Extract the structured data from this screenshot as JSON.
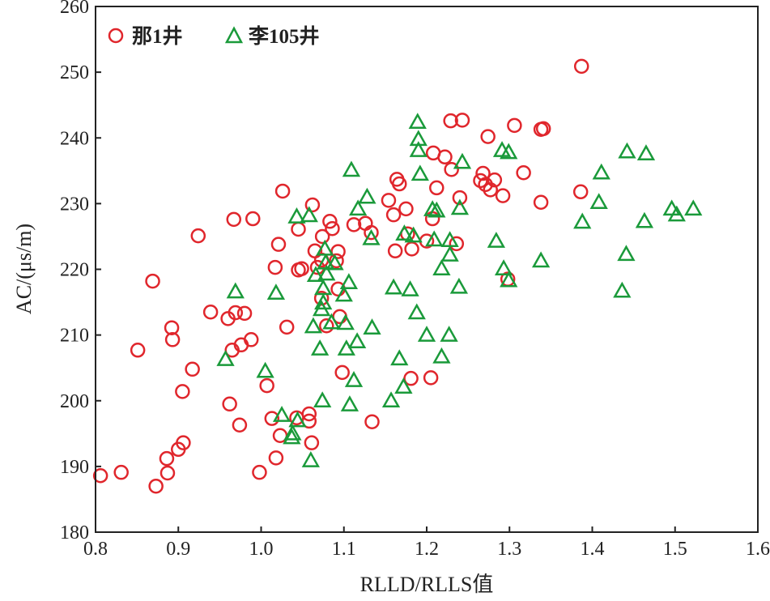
{
  "chart_data": {
    "type": "scatter",
    "title": "",
    "xlabel": "RLLD/RLLS值",
    "ylabel": "AC/(μs/m)",
    "xlim": [
      0.8,
      1.6
    ],
    "ylim": [
      180,
      260
    ],
    "xticks": [
      "0.8",
      "0.9",
      "1.0",
      "1.1",
      "1.2",
      "1.3",
      "1.4",
      "1.5",
      "1.6"
    ],
    "yticks": [
      "180",
      "190",
      "200",
      "210",
      "220",
      "230",
      "240",
      "250",
      "260"
    ],
    "grid": false,
    "legend_position": "top-left",
    "series": [
      {
        "name": "那1井",
        "marker": "circle",
        "color": "#e0262c",
        "points": [
          [
            0.806,
            188.6
          ],
          [
            0.831,
            189.1
          ],
          [
            0.851,
            207.7
          ],
          [
            0.869,
            218.2
          ],
          [
            0.873,
            187.0
          ],
          [
            0.886,
            191.2
          ],
          [
            0.887,
            189.0
          ],
          [
            0.892,
            211.1
          ],
          [
            0.893,
            209.3
          ],
          [
            0.9,
            192.6
          ],
          [
            0.906,
            193.6
          ],
          [
            0.905,
            201.4
          ],
          [
            0.917,
            204.8
          ],
          [
            0.924,
            225.1
          ],
          [
            0.939,
            213.5
          ],
          [
            0.96,
            212.5
          ],
          [
            0.962,
            199.5
          ],
          [
            0.967,
            227.6
          ],
          [
            0.965,
            207.7
          ],
          [
            0.969,
            213.4
          ],
          [
            0.974,
            196.3
          ],
          [
            0.976,
            208.5
          ],
          [
            0.98,
            213.3
          ],
          [
            0.988,
            209.3
          ],
          [
            0.99,
            227.7
          ],
          [
            0.998,
            189.1
          ],
          [
            1.007,
            202.3
          ],
          [
            1.013,
            197.3
          ],
          [
            1.018,
            191.3
          ],
          [
            1.021,
            223.8
          ],
          [
            1.017,
            220.3
          ],
          [
            1.023,
            194.7
          ],
          [
            1.026,
            231.9
          ],
          [
            1.031,
            211.2
          ],
          [
            1.043,
            197.4
          ],
          [
            1.045,
            226.1
          ],
          [
            1.045,
            219.9
          ],
          [
            1.049,
            220.1
          ],
          [
            1.058,
            196.9
          ],
          [
            1.058,
            198.0
          ],
          [
            1.061,
            193.6
          ],
          [
            1.062,
            229.8
          ],
          [
            1.065,
            222.8
          ],
          [
            1.068,
            220.3
          ],
          [
            1.073,
            215.6
          ],
          [
            1.073,
            221.4
          ],
          [
            1.074,
            225.0
          ],
          [
            1.079,
            211.4
          ],
          [
            1.083,
            227.3
          ],
          [
            1.086,
            226.2
          ],
          [
            1.091,
            221.3
          ],
          [
            1.093,
            222.7
          ],
          [
            1.093,
            217.0
          ],
          [
            1.095,
            212.8
          ],
          [
            1.098,
            204.3
          ],
          [
            1.112,
            226.8
          ],
          [
            1.126,
            227.0
          ],
          [
            1.133,
            225.6
          ],
          [
            1.134,
            196.8
          ],
          [
            1.154,
            230.5
          ],
          [
            1.16,
            228.3
          ],
          [
            1.162,
            222.8
          ],
          [
            1.164,
            233.7
          ],
          [
            1.167,
            233.0
          ],
          [
            1.175,
            229.2
          ],
          [
            1.177,
            225.4
          ],
          [
            1.181,
            203.4
          ],
          [
            1.182,
            223.1
          ],
          [
            1.2,
            224.3
          ],
          [
            1.205,
            203.5
          ],
          [
            1.207,
            227.7
          ],
          [
            1.208,
            237.7
          ],
          [
            1.212,
            232.4
          ],
          [
            1.222,
            237.1
          ],
          [
            1.229,
            242.6
          ],
          [
            1.23,
            235.2
          ],
          [
            1.236,
            223.9
          ],
          [
            1.24,
            230.9
          ],
          [
            1.243,
            242.7
          ],
          [
            1.265,
            233.5
          ],
          [
            1.268,
            234.6
          ],
          [
            1.271,
            232.9
          ],
          [
            1.274,
            240.2
          ],
          [
            1.277,
            232.1
          ],
          [
            1.282,
            233.6
          ],
          [
            1.292,
            231.2
          ],
          [
            1.298,
            218.5
          ],
          [
            1.306,
            241.9
          ],
          [
            1.317,
            234.7
          ],
          [
            1.338,
            241.3
          ],
          [
            1.338,
            230.2
          ],
          [
            1.341,
            241.4
          ],
          [
            1.386,
            231.8
          ],
          [
            1.387,
            250.9
          ]
        ]
      },
      {
        "name": "李105井",
        "marker": "triangle",
        "color": "#1a9a3a",
        "points": [
          [
            0.957,
            206.3
          ],
          [
            0.969,
            216.6
          ],
          [
            1.005,
            204.5
          ],
          [
            1.018,
            216.4
          ],
          [
            1.025,
            197.8
          ],
          [
            1.037,
            194.4
          ],
          [
            1.038,
            195.0
          ],
          [
            1.044,
            197.0
          ],
          [
            1.043,
            228.0
          ],
          [
            1.058,
            228.2
          ],
          [
            1.06,
            190.9
          ],
          [
            1.063,
            211.3
          ],
          [
            1.066,
            219.1
          ],
          [
            1.071,
            207.9
          ],
          [
            1.073,
            213.9
          ],
          [
            1.074,
            200.0
          ],
          [
            1.075,
            214.9
          ],
          [
            1.075,
            217.1
          ],
          [
            1.077,
            223.1
          ],
          [
            1.078,
            221.0
          ],
          [
            1.079,
            219.3
          ],
          [
            1.085,
            211.9
          ],
          [
            1.089,
            220.9
          ],
          [
            1.1,
            216.1
          ],
          [
            1.102,
            211.8
          ],
          [
            1.103,
            207.9
          ],
          [
            1.106,
            218.0
          ],
          [
            1.107,
            199.4
          ],
          [
            1.109,
            235.1
          ],
          [
            1.112,
            203.1
          ],
          [
            1.116,
            209.0
          ],
          [
            1.117,
            229.2
          ],
          [
            1.128,
            231.0
          ],
          [
            1.133,
            224.7
          ],
          [
            1.134,
            211.1
          ],
          [
            1.157,
            200.0
          ],
          [
            1.16,
            217.2
          ],
          [
            1.167,
            206.4
          ],
          [
            1.172,
            202.1
          ],
          [
            1.173,
            225.4
          ],
          [
            1.18,
            216.9
          ],
          [
            1.184,
            225.1
          ],
          [
            1.188,
            213.4
          ],
          [
            1.189,
            242.4
          ],
          [
            1.19,
            239.8
          ],
          [
            1.19,
            238.1
          ],
          [
            1.192,
            234.5
          ],
          [
            1.2,
            210.0
          ],
          [
            1.207,
            229.1
          ],
          [
            1.209,
            224.5
          ],
          [
            1.212,
            228.9
          ],
          [
            1.218,
            220.1
          ],
          [
            1.218,
            206.7
          ],
          [
            1.227,
            210.0
          ],
          [
            1.228,
            224.4
          ],
          [
            1.228,
            222.2
          ],
          [
            1.239,
            217.3
          ],
          [
            1.24,
            229.3
          ],
          [
            1.243,
            236.3
          ],
          [
            1.284,
            224.3
          ],
          [
            1.291,
            238.1
          ],
          [
            1.293,
            220.1
          ],
          [
            1.299,
            237.8
          ],
          [
            1.299,
            218.3
          ],
          [
            1.338,
            221.3
          ],
          [
            1.388,
            227.2
          ],
          [
            1.408,
            230.2
          ],
          [
            1.411,
            234.7
          ],
          [
            1.436,
            216.7
          ],
          [
            1.441,
            222.3
          ],
          [
            1.442,
            237.9
          ],
          [
            1.463,
            227.3
          ],
          [
            1.465,
            237.6
          ],
          [
            1.496,
            229.2
          ],
          [
            1.502,
            228.3
          ],
          [
            1.522,
            229.2
          ]
        ]
      }
    ]
  }
}
